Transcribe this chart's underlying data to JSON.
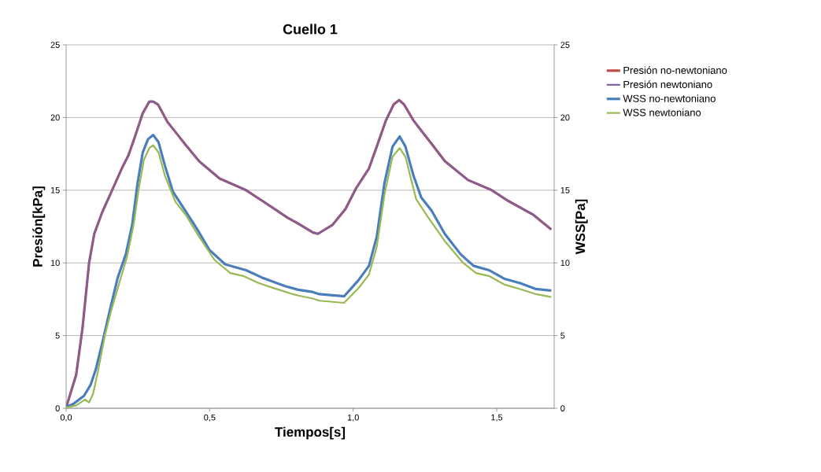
{
  "chart_data": {
    "type": "line",
    "title": "Cuello 1",
    "xlabel": "Tiempos[s]",
    "ylabel": "Presión[kPa]",
    "y2label": "WSS[Pa]",
    "xlim": [
      0,
      1.7
    ],
    "xticks": [
      {
        "value": 0,
        "label": "0,0"
      },
      {
        "value": 0.5,
        "label": "0,5"
      },
      {
        "value": 1.0,
        "label": "1,0"
      },
      {
        "value": 1.5,
        "label": "1,5"
      }
    ],
    "ylim": [
      0,
      25
    ],
    "yticks": [
      0,
      5,
      10,
      15,
      20,
      25
    ],
    "y2lim": [
      0,
      25
    ],
    "y2ticks": [
      0,
      5,
      10,
      15,
      20,
      25
    ],
    "grid": "y",
    "legend": "right",
    "marker": "none",
    "line_style": "solid",
    "series": [
      {
        "name": "Presión no-newtoniano",
        "color": "#be4b48",
        "x": [
          0,
          0.035,
          0.057,
          0.08,
          0.098,
          0.126,
          0.158,
          0.194,
          0.217,
          0.24,
          0.267,
          0.29,
          0.303,
          0.32,
          0.353,
          0.381,
          0.417,
          0.463,
          0.535,
          0.627,
          0.681,
          0.772,
          0.809,
          0.859,
          0.877,
          0.927,
          0.973,
          1.009,
          1.055,
          1.082,
          1.114,
          1.141,
          1.16,
          1.177,
          1.21,
          1.237,
          1.273,
          1.319,
          1.4,
          1.483,
          1.537,
          1.628,
          1.69
        ],
        "values": [
          0.05,
          2.3,
          5.5,
          10.0,
          12.0,
          13.5,
          14.9,
          16.5,
          17.4,
          18.7,
          20.3,
          21.1,
          21.1,
          20.9,
          19.7,
          19.0,
          18.1,
          17.0,
          15.8,
          15.0,
          14.3,
          13.1,
          12.7,
          12.1,
          12.0,
          12.6,
          13.7,
          15.1,
          16.5,
          18.0,
          19.8,
          20.9,
          21.2,
          20.9,
          19.8,
          19.1,
          18.2,
          17.0,
          15.7,
          15.0,
          14.3,
          13.3,
          12.3
        ]
      },
      {
        "name": "Presión newtoniano",
        "color": "#7d60a0",
        "x": [
          0,
          0.035,
          0.057,
          0.08,
          0.098,
          0.126,
          0.158,
          0.194,
          0.217,
          0.24,
          0.267,
          0.29,
          0.303,
          0.32,
          0.353,
          0.381,
          0.417,
          0.463,
          0.535,
          0.627,
          0.681,
          0.772,
          0.809,
          0.859,
          0.877,
          0.927,
          0.973,
          1.009,
          1.055,
          1.082,
          1.114,
          1.141,
          1.16,
          1.177,
          1.21,
          1.237,
          1.273,
          1.319,
          1.4,
          1.483,
          1.537,
          1.628,
          1.69
        ],
        "values": [
          0.05,
          2.3,
          5.5,
          10.0,
          12.0,
          13.5,
          14.9,
          16.5,
          17.4,
          18.7,
          20.3,
          21.1,
          21.1,
          20.9,
          19.7,
          19.0,
          18.1,
          17.0,
          15.8,
          15.0,
          14.3,
          13.1,
          12.7,
          12.1,
          12.0,
          12.6,
          13.7,
          15.1,
          16.5,
          18.0,
          19.8,
          20.9,
          21.2,
          20.9,
          19.8,
          19.1,
          18.2,
          17.0,
          15.7,
          15.0,
          14.3,
          13.3,
          12.3
        ]
      },
      {
        "name": "WSS no-newtoniano",
        "color": "#4a7ebb",
        "axis": "y2",
        "x": [
          0,
          0.025,
          0.062,
          0.085,
          0.103,
          0.126,
          0.153,
          0.18,
          0.208,
          0.23,
          0.249,
          0.267,
          0.285,
          0.303,
          0.322,
          0.344,
          0.372,
          0.408,
          0.454,
          0.499,
          0.554,
          0.627,
          0.681,
          0.763,
          0.809,
          0.859,
          0.882,
          0.968,
          1.018,
          1.055,
          1.082,
          1.109,
          1.137,
          1.162,
          1.182,
          1.21,
          1.237,
          1.273,
          1.319,
          1.374,
          1.419,
          1.473,
          1.528,
          1.582,
          1.637,
          1.69
        ],
        "values": [
          0.1,
          0.3,
          0.85,
          1.6,
          2.65,
          4.5,
          6.8,
          9.0,
          10.6,
          12.6,
          15.5,
          17.6,
          18.5,
          18.8,
          18.3,
          16.7,
          14.9,
          13.8,
          12.4,
          10.9,
          9.9,
          9.5,
          9.0,
          8.4,
          8.15,
          8.0,
          7.85,
          7.7,
          8.8,
          9.8,
          11.8,
          15.5,
          18.0,
          18.7,
          18.0,
          16.0,
          14.5,
          13.6,
          12.0,
          10.6,
          9.8,
          9.5,
          8.9,
          8.6,
          8.2,
          8.1
        ]
      },
      {
        "name": "WSS newtoniano",
        "color": "#98b954",
        "axis": "y2",
        "x": [
          0,
          0.035,
          0.066,
          0.08,
          0.094,
          0.112,
          0.135,
          0.158,
          0.185,
          0.212,
          0.235,
          0.253,
          0.271,
          0.29,
          0.303,
          0.322,
          0.344,
          0.381,
          0.417,
          0.463,
          0.517,
          0.572,
          0.617,
          0.672,
          0.718,
          0.79,
          0.809,
          0.859,
          0.882,
          0.968,
          1.018,
          1.055,
          1.082,
          1.109,
          1.137,
          1.162,
          1.182,
          1.219,
          1.255,
          1.319,
          1.383,
          1.428,
          1.473,
          1.528,
          1.582,
          1.637,
          1.69
        ],
        "values": [
          0.05,
          0.2,
          0.6,
          0.4,
          1.0,
          2.65,
          5.0,
          6.8,
          8.6,
          10.4,
          12.6,
          15.1,
          17.1,
          17.9,
          18.1,
          17.6,
          16.0,
          14.2,
          13.3,
          11.8,
          10.2,
          9.3,
          9.1,
          8.6,
          8.3,
          7.85,
          7.75,
          7.55,
          7.4,
          7.25,
          8.25,
          9.2,
          11.1,
          14.7,
          17.3,
          17.9,
          17.3,
          14.4,
          13.3,
          11.5,
          10.0,
          9.3,
          9.1,
          8.5,
          8.2,
          7.85,
          7.65
        ]
      }
    ]
  }
}
